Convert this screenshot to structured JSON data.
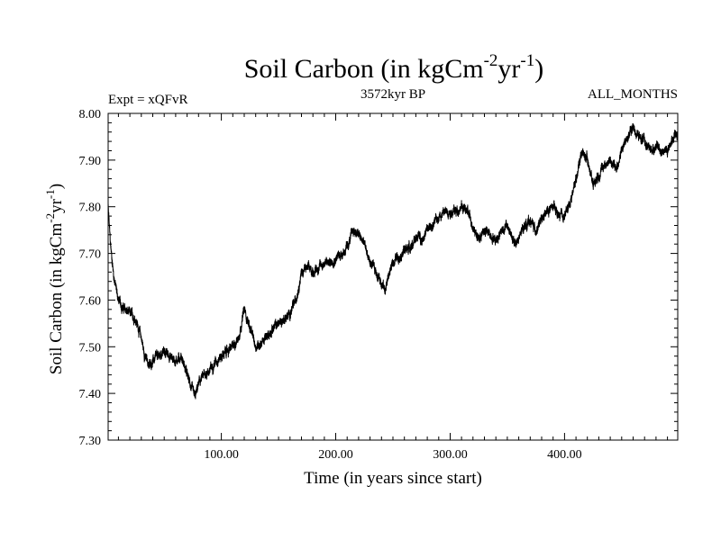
{
  "chart_data": {
    "type": "line",
    "title": "Soil Carbon (in kgCm",
    "title_sup1": "-2",
    "title_mid": "yr",
    "title_sup2": "-1",
    "title_end": ")",
    "subtitle_left": "Expt = xQFvR",
    "subtitle_center": "3572kyr BP",
    "subtitle_right": "ALL_MONTHS",
    "xlabel": "Time (in years since start)",
    "ylabel_main": "Soil Carbon (in kgCm",
    "ylabel_sup1": "-2",
    "ylabel_mid": "yr",
    "ylabel_sup2": "-1",
    "ylabel_end": ")",
    "xlim": [
      1,
      499
    ],
    "ylim": [
      7.3,
      8.0
    ],
    "xticks_major": [
      100,
      200,
      300,
      400
    ],
    "xtick_labels": [
      "100.00",
      "200.00",
      "300.00",
      "400.00"
    ],
    "xticks_minor_step": 10,
    "yticks_major": [
      7.3,
      7.4,
      7.5,
      7.6,
      7.7,
      7.8,
      7.9,
      8.0
    ],
    "ytick_labels": [
      "7.30",
      "7.40",
      "7.50",
      "7.60",
      "7.70",
      "7.80",
      "7.90",
      "8.00"
    ],
    "yticks_minor_step": 0.02,
    "grid": false,
    "series": [
      {
        "name": "Soil Carbon",
        "color": "#000000",
        "noise_amplitude": 0.012,
        "x": [
          1,
          3,
          6,
          10,
          15,
          20,
          25,
          30,
          33,
          37,
          40,
          45,
          50,
          55,
          60,
          65,
          70,
          74,
          77,
          80,
          85,
          90,
          95,
          100,
          105,
          110,
          115,
          120,
          125,
          130,
          135,
          140,
          145,
          150,
          155,
          160,
          165,
          170,
          175,
          180,
          185,
          190,
          195,
          200,
          205,
          210,
          215,
          220,
          225,
          230,
          235,
          240,
          243,
          247,
          252,
          258,
          262,
          268,
          272,
          275,
          280,
          285,
          290,
          295,
          300,
          305,
          310,
          315,
          320,
          325,
          330,
          335,
          340,
          345,
          350,
          356,
          360,
          365,
          370,
          375,
          380,
          385,
          390,
          395,
          400,
          405,
          410,
          415,
          420,
          425,
          430,
          435,
          440,
          445,
          450,
          455,
          460,
          465,
          470,
          475,
          480,
          485,
          490,
          495,
          499
        ],
        "y": [
          7.8,
          7.72,
          7.65,
          7.6,
          7.58,
          7.57,
          7.56,
          7.52,
          7.48,
          7.46,
          7.47,
          7.48,
          7.49,
          7.48,
          7.47,
          7.48,
          7.44,
          7.41,
          7.39,
          7.42,
          7.44,
          7.45,
          7.47,
          7.48,
          7.49,
          7.5,
          7.52,
          7.58,
          7.54,
          7.5,
          7.51,
          7.52,
          7.54,
          7.55,
          7.56,
          7.57,
          7.6,
          7.66,
          7.67,
          7.66,
          7.67,
          7.68,
          7.68,
          7.69,
          7.7,
          7.71,
          7.75,
          7.74,
          7.72,
          7.68,
          7.66,
          7.64,
          7.62,
          7.66,
          7.69,
          7.7,
          7.71,
          7.72,
          7.74,
          7.73,
          7.75,
          7.76,
          7.78,
          7.79,
          7.79,
          7.79,
          7.8,
          7.79,
          7.76,
          7.73,
          7.75,
          7.74,
          7.73,
          7.75,
          7.76,
          7.72,
          7.73,
          7.76,
          7.77,
          7.75,
          7.77,
          7.79,
          7.8,
          7.78,
          7.78,
          7.81,
          7.86,
          7.92,
          7.9,
          7.85,
          7.87,
          7.89,
          7.9,
          7.88,
          7.92,
          7.95,
          7.97,
          7.95,
          7.94,
          7.92,
          7.93,
          7.92,
          7.92,
          7.95,
          7.96
        ]
      }
    ]
  }
}
